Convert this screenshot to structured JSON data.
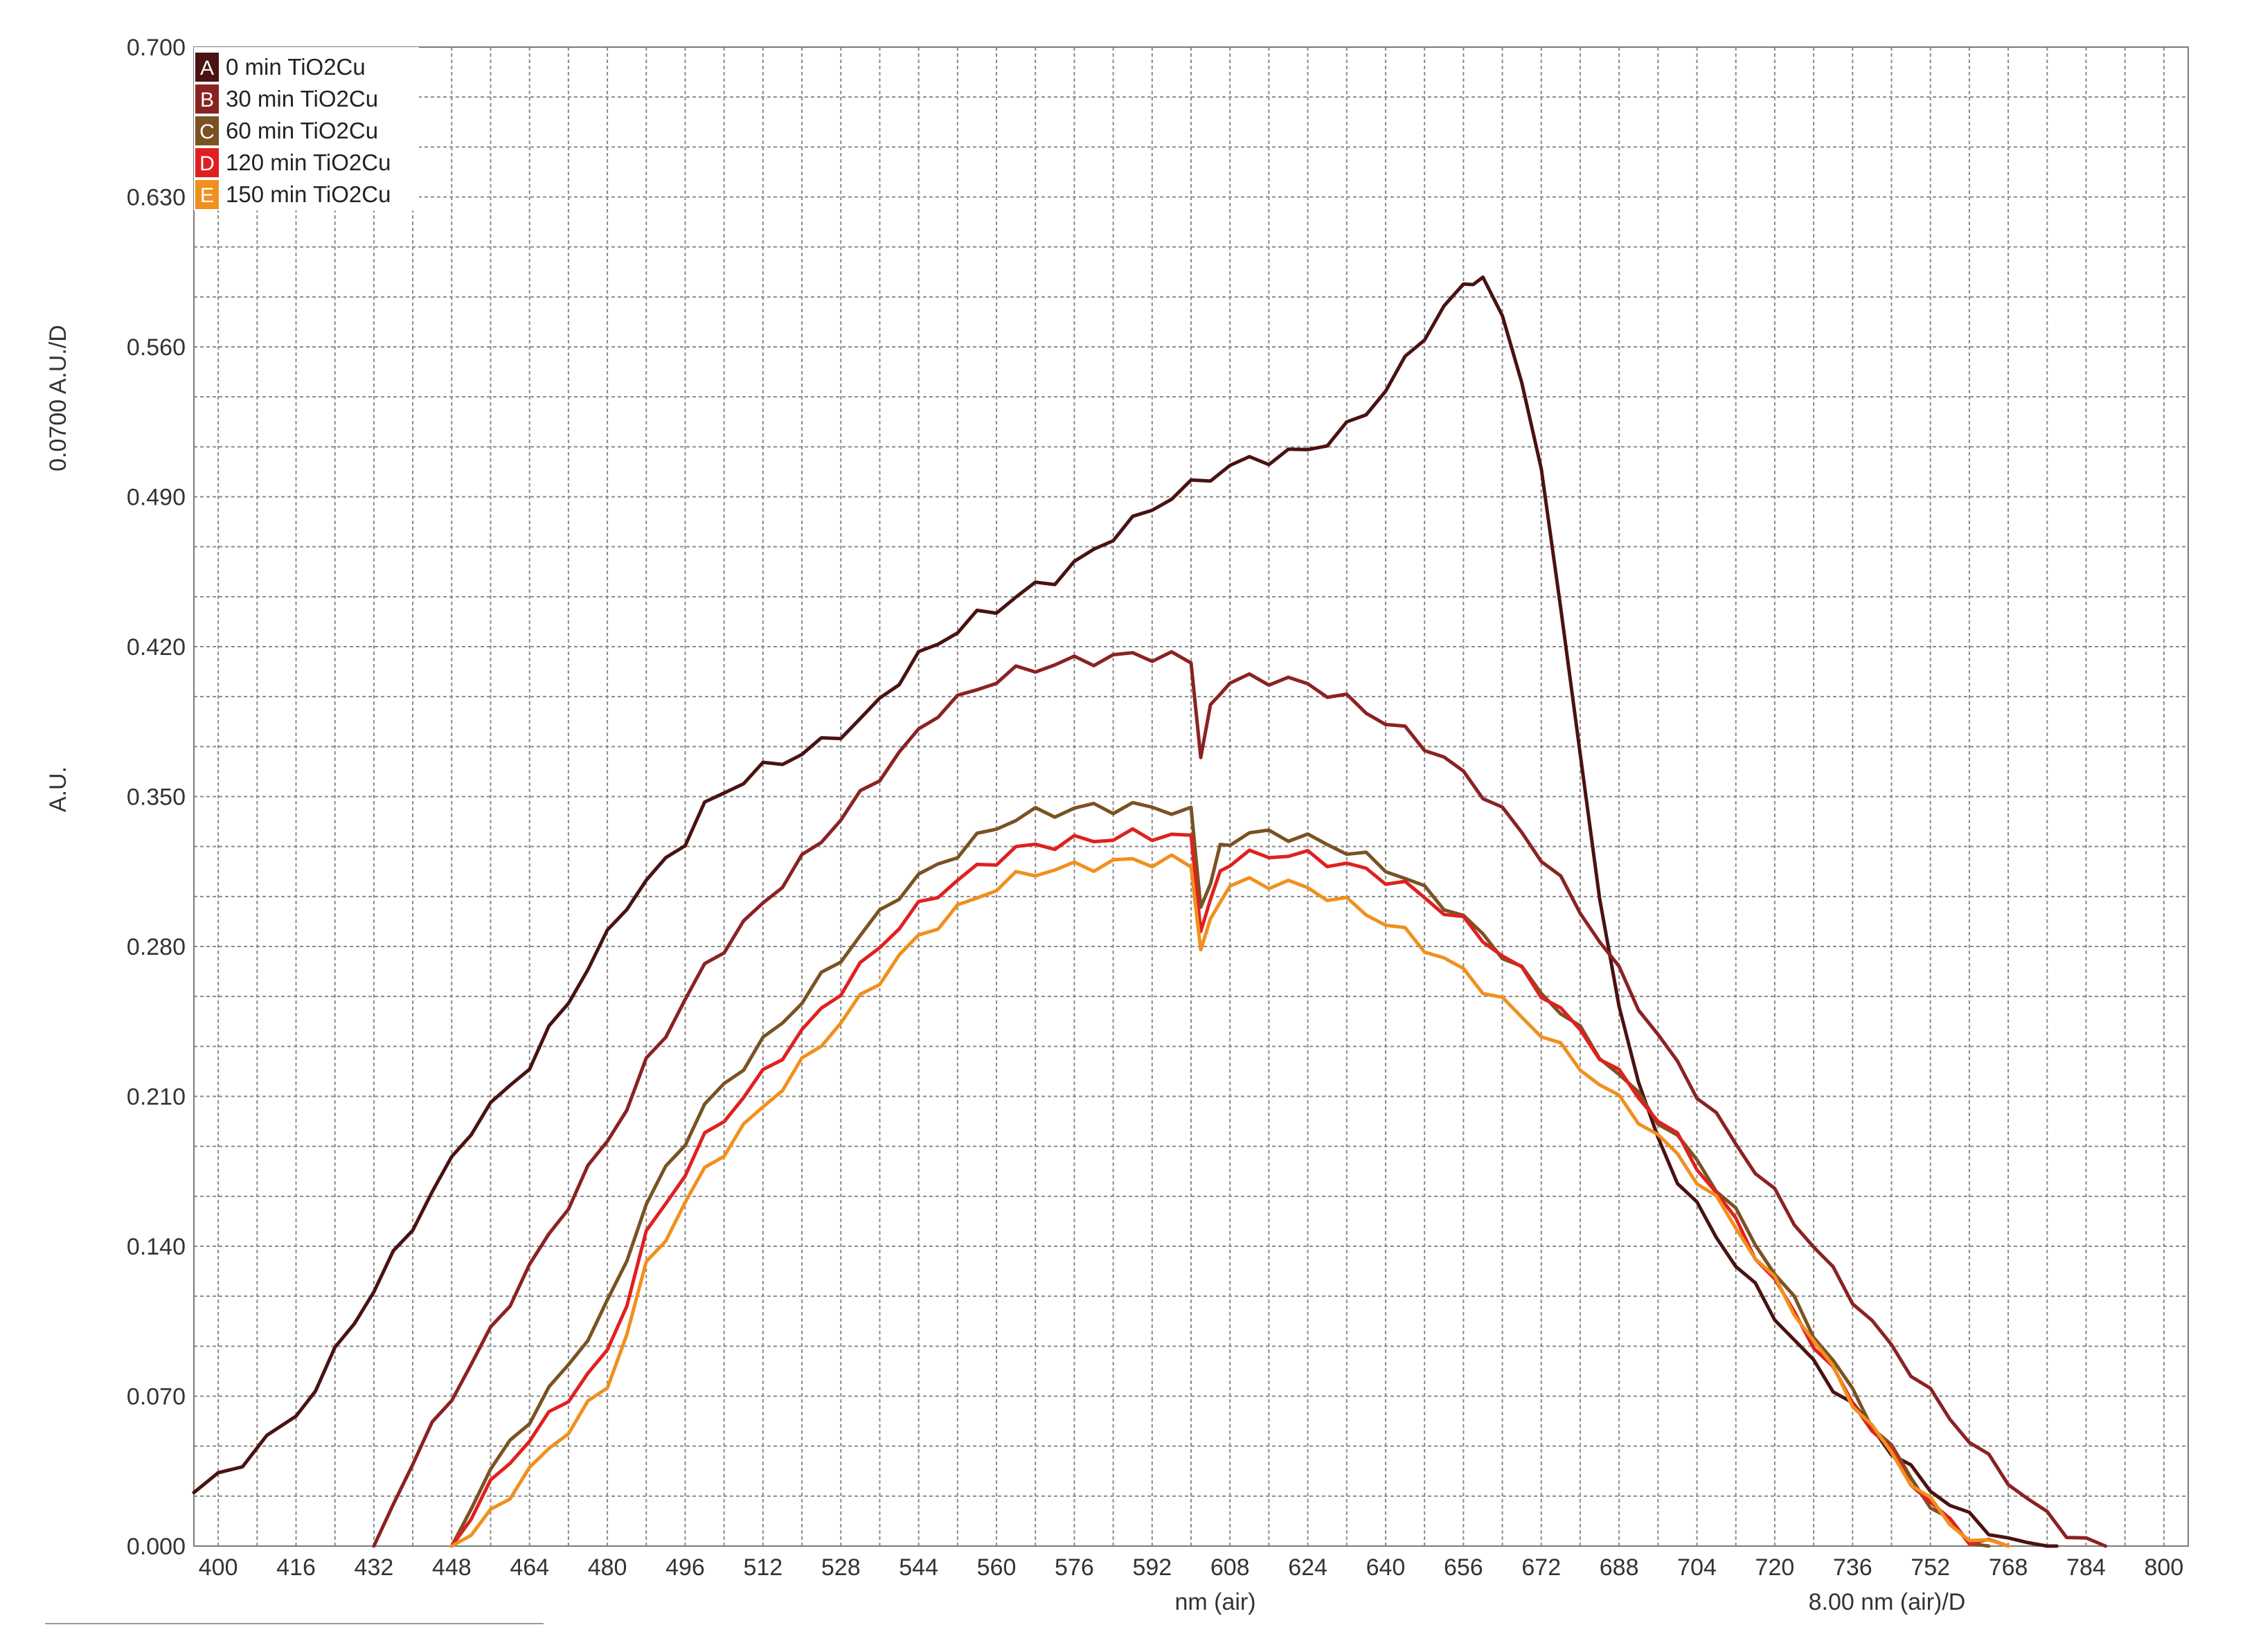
{
  "chart_data": {
    "type": "line",
    "title": "",
    "xlabel": "nm (air)",
    "xlabel_secondary": "8.00 nm (air)/D",
    "ylabel": "A.U.",
    "ylabel_secondary": "0.0700 A.U./D",
    "xlim": [
      395,
      805
    ],
    "ylim": [
      0.0,
      0.7
    ],
    "grid": true,
    "legend_position": "top-left",
    "x_ticks": [
      "400",
      "416",
      "432",
      "448",
      "464",
      "480",
      "496",
      "512",
      "528",
      "544",
      "560",
      "576",
      "592",
      "608",
      "624",
      "640",
      "656",
      "672",
      "688",
      "704",
      "720",
      "736",
      "752",
      "768",
      "784",
      "800"
    ],
    "y_ticks": [
      "0.000",
      "0.070",
      "0.140",
      "0.210",
      "0.280",
      "0.350",
      "0.420",
      "0.490",
      "0.560",
      "0.630",
      "0.700"
    ],
    "series": [
      {
        "id": "A",
        "name": "0 min TiO2Cu",
        "color": "#4a1212",
        "x": [
          395,
          400,
          405,
          410,
          416,
          420,
          424,
          428,
          432,
          436,
          440,
          444,
          448,
          452,
          456,
          460,
          464,
          468,
          472,
          476,
          480,
          484,
          488,
          492,
          496,
          500,
          504,
          508,
          512,
          516,
          520,
          524,
          528,
          532,
          536,
          540,
          544,
          548,
          552,
          556,
          560,
          564,
          568,
          572,
          576,
          580,
          584,
          588,
          592,
          596,
          600,
          604,
          608,
          612,
          616,
          620,
          624,
          628,
          632,
          636,
          640,
          644,
          648,
          652,
          656,
          658,
          660,
          664,
          668,
          672,
          676,
          680,
          684,
          688,
          692,
          696,
          700,
          704,
          708,
          712,
          716,
          720,
          724,
          728,
          732,
          736,
          740,
          744,
          748,
          752,
          756,
          760,
          764,
          768,
          772,
          776,
          778
        ],
        "y": [
          0.025,
          0.032,
          0.04,
          0.05,
          0.06,
          0.075,
          0.09,
          0.105,
          0.12,
          0.135,
          0.15,
          0.165,
          0.18,
          0.195,
          0.205,
          0.215,
          0.225,
          0.24,
          0.255,
          0.27,
          0.285,
          0.3,
          0.31,
          0.32,
          0.33,
          0.345,
          0.352,
          0.358,
          0.363,
          0.367,
          0.37,
          0.375,
          0.38,
          0.385,
          0.395,
          0.405,
          0.415,
          0.422,
          0.428,
          0.434,
          0.438,
          0.443,
          0.448,
          0.452,
          0.458,
          0.465,
          0.472,
          0.478,
          0.485,
          0.49,
          0.495,
          0.5,
          0.504,
          0.507,
          0.508,
          0.51,
          0.512,
          0.516,
          0.522,
          0.53,
          0.54,
          0.553,
          0.566,
          0.578,
          0.588,
          0.592,
          0.59,
          0.575,
          0.545,
          0.5,
          0.44,
          0.37,
          0.3,
          0.255,
          0.215,
          0.19,
          0.172,
          0.158,
          0.145,
          0.132,
          0.12,
          0.108,
          0.096,
          0.085,
          0.075,
          0.065,
          0.055,
          0.045,
          0.035,
          0.027,
          0.02,
          0.013,
          0.008,
          0.003,
          0.0,
          0.0,
          0.0
        ]
      },
      {
        "id": "B",
        "name": "30 min TiO2Cu",
        "color": "#8b2222",
        "x": [
          432,
          436,
          440,
          444,
          448,
          452,
          456,
          460,
          464,
          468,
          472,
          476,
          480,
          484,
          488,
          492,
          496,
          500,
          504,
          508,
          512,
          516,
          520,
          524,
          528,
          532,
          536,
          540,
          544,
          548,
          552,
          556,
          560,
          564,
          568,
          572,
          576,
          580,
          584,
          588,
          592,
          596,
          600,
          602,
          604,
          606,
          608,
          612,
          616,
          620,
          624,
          628,
          632,
          636,
          640,
          644,
          648,
          652,
          656,
          660,
          664,
          668,
          672,
          676,
          680,
          684,
          688,
          692,
          696,
          700,
          704,
          708,
          712,
          716,
          720,
          724,
          728,
          732,
          736,
          740,
          744,
          748,
          752,
          756,
          760,
          764,
          768,
          772,
          776,
          780,
          784,
          788
        ],
        "y": [
          0.0,
          0.02,
          0.04,
          0.055,
          0.07,
          0.085,
          0.1,
          0.115,
          0.13,
          0.145,
          0.16,
          0.175,
          0.19,
          0.205,
          0.225,
          0.24,
          0.255,
          0.27,
          0.28,
          0.29,
          0.3,
          0.31,
          0.32,
          0.33,
          0.34,
          0.35,
          0.36,
          0.37,
          0.38,
          0.39,
          0.395,
          0.4,
          0.405,
          0.408,
          0.41,
          0.412,
          0.413,
          0.414,
          0.415,
          0.416,
          0.416,
          0.415,
          0.413,
          0.37,
          0.39,
          0.4,
          0.403,
          0.405,
          0.405,
          0.404,
          0.402,
          0.399,
          0.395,
          0.39,
          0.385,
          0.38,
          0.374,
          0.368,
          0.36,
          0.352,
          0.343,
          0.333,
          0.322,
          0.31,
          0.297,
          0.283,
          0.268,
          0.253,
          0.238,
          0.225,
          0.212,
          0.2,
          0.188,
          0.176,
          0.164,
          0.152,
          0.14,
          0.128,
          0.116,
          0.104,
          0.093,
          0.082,
          0.071,
          0.06,
          0.05,
          0.04,
          0.031,
          0.022,
          0.014,
          0.007,
          0.002,
          0.0
        ]
      },
      {
        "id": "C",
        "name": "60 min TiO2Cu",
        "color": "#7a5222",
        "x": [
          448,
          452,
          456,
          460,
          464,
          468,
          472,
          476,
          480,
          484,
          488,
          492,
          496,
          500,
          504,
          508,
          512,
          516,
          520,
          524,
          528,
          532,
          536,
          540,
          544,
          548,
          552,
          556,
          560,
          564,
          568,
          572,
          576,
          580,
          584,
          588,
          592,
          596,
          600,
          602,
          604,
          606,
          608,
          612,
          616,
          620,
          624,
          628,
          632,
          636,
          640,
          644,
          648,
          652,
          656,
          660,
          664,
          668,
          672,
          676,
          680,
          684,
          688,
          692,
          696,
          700,
          704,
          708,
          712,
          716,
          720,
          724,
          728,
          732,
          736,
          740,
          744,
          748,
          752,
          756,
          760,
          764
        ],
        "y": [
          0.0,
          0.02,
          0.035,
          0.048,
          0.06,
          0.072,
          0.085,
          0.098,
          0.112,
          0.135,
          0.16,
          0.175,
          0.19,
          0.205,
          0.215,
          0.225,
          0.235,
          0.245,
          0.255,
          0.265,
          0.275,
          0.285,
          0.295,
          0.305,
          0.312,
          0.318,
          0.324,
          0.33,
          0.336,
          0.34,
          0.342,
          0.343,
          0.344,
          0.345,
          0.345,
          0.345,
          0.345,
          0.344,
          0.342,
          0.3,
          0.31,
          0.325,
          0.33,
          0.332,
          0.333,
          0.332,
          0.33,
          0.328,
          0.325,
          0.321,
          0.317,
          0.312,
          0.306,
          0.3,
          0.293,
          0.285,
          0.277,
          0.268,
          0.259,
          0.25,
          0.24,
          0.23,
          0.22,
          0.21,
          0.2,
          0.19,
          0.18,
          0.168,
          0.155,
          0.142,
          0.128,
          0.114,
          0.1,
          0.086,
          0.072,
          0.058,
          0.045,
          0.032,
          0.02,
          0.01,
          0.003,
          0.0
        ]
      },
      {
        "id": "D",
        "name": "120 min TiO2Cu",
        "color": "#e02020",
        "x": [
          448,
          452,
          456,
          460,
          464,
          468,
          472,
          476,
          480,
          484,
          488,
          492,
          496,
          500,
          504,
          508,
          512,
          516,
          520,
          524,
          528,
          532,
          536,
          540,
          544,
          548,
          552,
          556,
          560,
          564,
          568,
          572,
          576,
          580,
          584,
          588,
          592,
          596,
          600,
          602,
          604,
          606,
          608,
          612,
          616,
          620,
          624,
          628,
          632,
          636,
          640,
          644,
          648,
          652,
          656,
          660,
          664,
          668,
          672,
          676,
          680,
          684,
          688,
          692,
          696,
          700,
          704,
          708,
          712,
          716,
          720,
          724,
          728,
          732,
          736,
          740,
          744,
          748,
          752,
          756,
          760,
          764,
          768
        ],
        "y": [
          0.0,
          0.015,
          0.028,
          0.04,
          0.05,
          0.06,
          0.07,
          0.08,
          0.09,
          0.115,
          0.145,
          0.16,
          0.175,
          0.19,
          0.2,
          0.21,
          0.22,
          0.23,
          0.24,
          0.25,
          0.26,
          0.27,
          0.28,
          0.29,
          0.298,
          0.305,
          0.311,
          0.316,
          0.321,
          0.325,
          0.327,
          0.328,
          0.329,
          0.33,
          0.331,
          0.332,
          0.332,
          0.332,
          0.33,
          0.29,
          0.3,
          0.315,
          0.32,
          0.322,
          0.323,
          0.323,
          0.322,
          0.32,
          0.318,
          0.315,
          0.312,
          0.308,
          0.303,
          0.297,
          0.291,
          0.284,
          0.276,
          0.268,
          0.259,
          0.25,
          0.24,
          0.23,
          0.22,
          0.21,
          0.2,
          0.19,
          0.178,
          0.165,
          0.151,
          0.137,
          0.123,
          0.109,
          0.095,
          0.081,
          0.068,
          0.055,
          0.043,
          0.031,
          0.02,
          0.011,
          0.004,
          0.001,
          0.0
        ]
      },
      {
        "id": "E",
        "name": "150 min TiO2Cu",
        "color": "#f0901e",
        "x": [
          448,
          452,
          456,
          460,
          464,
          468,
          472,
          476,
          480,
          484,
          488,
          492,
          496,
          500,
          504,
          508,
          512,
          516,
          520,
          524,
          528,
          532,
          536,
          540,
          544,
          548,
          552,
          556,
          560,
          564,
          568,
          572,
          576,
          580,
          584,
          588,
          592,
          596,
          600,
          602,
          604,
          606,
          608,
          612,
          616,
          620,
          624,
          628,
          632,
          636,
          640,
          644,
          648,
          652,
          656,
          660,
          664,
          668,
          672,
          676,
          680,
          684,
          688,
          692,
          696,
          700,
          704,
          708,
          712,
          716,
          720,
          724,
          728,
          732,
          736,
          740,
          744,
          748,
          752,
          756,
          760,
          764,
          768
        ],
        "y": [
          0.0,
          0.005,
          0.015,
          0.025,
          0.035,
          0.045,
          0.055,
          0.065,
          0.075,
          0.1,
          0.13,
          0.145,
          0.16,
          0.175,
          0.185,
          0.195,
          0.205,
          0.215,
          0.225,
          0.235,
          0.245,
          0.255,
          0.265,
          0.275,
          0.284,
          0.291,
          0.297,
          0.303,
          0.308,
          0.312,
          0.315,
          0.316,
          0.317,
          0.318,
          0.319,
          0.32,
          0.32,
          0.32,
          0.318,
          0.28,
          0.29,
          0.303,
          0.308,
          0.31,
          0.31,
          0.309,
          0.307,
          0.304,
          0.3,
          0.296,
          0.291,
          0.286,
          0.28,
          0.274,
          0.268,
          0.261,
          0.254,
          0.247,
          0.24,
          0.232,
          0.224,
          0.216,
          0.208,
          0.2,
          0.191,
          0.182,
          0.172,
          0.161,
          0.149,
          0.136,
          0.123,
          0.11,
          0.096,
          0.082,
          0.068,
          0.055,
          0.043,
          0.031,
          0.02,
          0.011,
          0.004,
          0.0,
          0.0
        ]
      }
    ]
  }
}
